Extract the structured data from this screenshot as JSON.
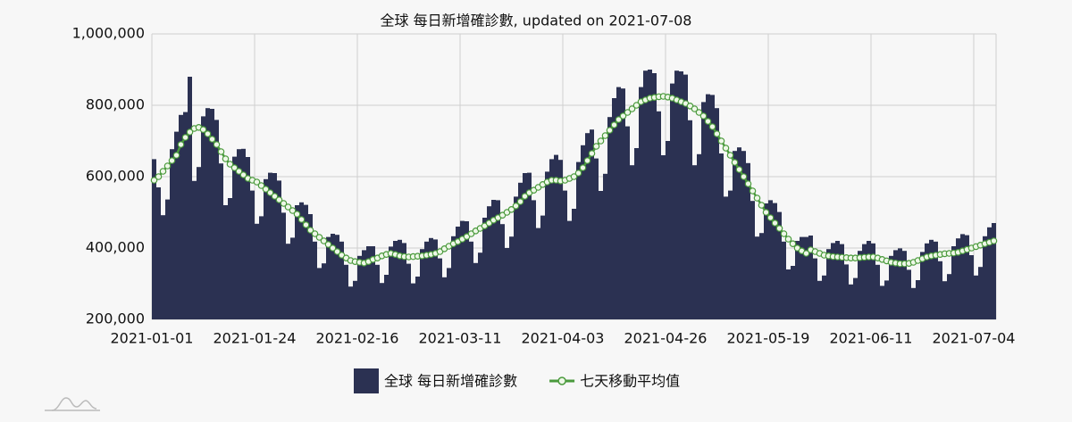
{
  "chart_data": {
    "type": "bar",
    "title": "全球 每日新增確診數, updated on 2021-07-08",
    "categories": [
      "2021-01-01",
      null,
      null,
      null,
      null,
      null,
      null,
      null,
      null,
      null,
      null,
      null,
      null,
      null,
      null,
      null,
      null,
      null,
      null,
      null,
      null,
      null,
      null,
      "2021-01-24",
      null,
      null,
      null,
      null,
      null,
      null,
      null,
      null,
      null,
      null,
      null,
      null,
      null,
      null,
      null,
      null,
      null,
      null,
      null,
      null,
      null,
      null,
      "2021-02-16",
      null,
      null,
      null,
      null,
      null,
      null,
      null,
      null,
      null,
      null,
      null,
      null,
      null,
      null,
      null,
      null,
      null,
      null,
      null,
      null,
      null,
      null,
      "2021-03-11",
      null,
      null,
      null,
      null,
      null,
      null,
      null,
      null,
      null,
      null,
      null,
      null,
      null,
      null,
      null,
      null,
      null,
      null,
      null,
      null,
      null,
      null,
      "2021-04-03",
      null,
      null,
      null,
      null,
      null,
      null,
      null,
      null,
      null,
      null,
      null,
      null,
      null,
      null,
      null,
      null,
      null,
      null,
      null,
      null,
      null,
      null,
      "2021-04-26",
      null,
      null,
      null,
      null,
      null,
      null,
      null,
      null,
      null,
      null,
      null,
      null,
      null,
      null,
      null,
      null,
      null,
      null,
      null,
      null,
      null,
      null,
      "2021-05-19",
      null,
      null,
      null,
      null,
      null,
      null,
      null,
      null,
      null,
      null,
      null,
      null,
      null,
      null,
      null,
      null,
      null,
      null,
      null,
      null,
      null,
      null,
      "2021-06-11",
      null,
      null,
      null,
      null,
      null,
      null,
      null,
      null,
      null,
      null,
      null,
      null,
      null,
      null,
      null,
      null,
      null,
      null,
      null,
      null,
      null,
      null,
      "2021-07-04",
      null,
      null,
      null,
      null
    ],
    "series": [
      {
        "name": "全球 每日新增確診數",
        "type": "bar",
        "color": "#2b3152",
        "values": [
          649000,
          570000,
          492000,
          536000,
          677000,
          726000,
          773000,
          781000,
          880000,
          588000,
          627000,
          769000,
          792000,
          790000,
          759000,
          637000,
          520000,
          540000,
          656000,
          677000,
          678000,
          655000,
          561000,
          468000,
          489000,
          593000,
          611000,
          610000,
          589000,
          499000,
          412000,
          429000,
          520000,
          528000,
          521000,
          495000,
          418000,
          344000,
          357000,
          431000,
          440000,
          437000,
          418000,
          353000,
          292000,
          308000,
          378000,
          394000,
          405000,
          405000,
          353000,
          302000,
          325000,
          404000,
          420000,
          423000,
          414000,
          356000,
          301000,
          320000,
          397000,
          418000,
          428000,
          424000,
          371000,
          318000,
          344000,
          433000,
          460000,
          476000,
          475000,
          418000,
          358000,
          387000,
          485000,
          517000,
          535000,
          534000,
          467000,
          400000,
          432000,
          544000,
          583000,
          610000,
          611000,
          534000,
          456000,
          491000,
          614000,
          649000,
          661000,
          647000,
          561000,
          476000,
          510000,
          641000,
          688000,
          722000,
          732000,
          651000,
          560000,
          608000,
          767000,
          820000,
          851000,
          847000,
          741000,
          632000,
          680000,
          851000,
          897000,
          900000,
          890000,
          783000,
          660000,
          700000,
          861000,
          897000,
          895000,
          886000,
          758000,
          632000,
          663000,
          809000,
          831000,
          829000,
          792000,
          665000,
          544000,
          561000,
          672000,
          682000,
          672000,
          638000,
          532000,
          432000,
          442000,
          525000,
          534000,
          526000,
          501000,
          418000,
          340000,
          350000,
          420000,
          431000,
          431000,
          435000,
          371000,
          308000,
          323000,
          397000,
          414000,
          420000,
          411000,
          354000,
          298000,
          316000,
          392000,
          411000,
          420000,
          413000,
          353000,
          294000,
          309000,
          378000,
          394000,
          399000,
          392000,
          339000,
          288000,
          310000,
          389000,
          413000,
          423000,
          418000,
          363000,
          307000,
          327000,
          405000,
          427000,
          439000,
          436000,
          380000,
          323000,
          347000,
          433000,
          458000,
          470000
        ]
      },
      {
        "name": "七天移動平均值",
        "type": "line",
        "color": "#4a9a3c",
        "values": [
          590000,
          600000,
          615000,
          630000,
          645000,
          660000,
          690000,
          710000,
          725000,
          735000,
          738000,
          732000,
          720000,
          705000,
          690000,
          670000,
          650000,
          635000,
          625000,
          615000,
          605000,
          595000,
          590000,
          585000,
          575000,
          565000,
          555000,
          545000,
          535000,
          525000,
          515000,
          505000,
          495000,
          480000,
          465000,
          450000,
          440000,
          430000,
          420000,
          410000,
          400000,
          390000,
          380000,
          372000,
          365000,
          362000,
          360000,
          358000,
          362000,
          368000,
          372000,
          378000,
          382000,
          385000,
          382000,
          378000,
          376000,
          375000,
          376000,
          377000,
          378000,
          380000,
          382000,
          385000,
          390000,
          398000,
          405000,
          412000,
          418000,
          425000,
          432000,
          440000,
          448000,
          455000,
          462000,
          470000,
          478000,
          485000,
          492000,
          500000,
          508000,
          518000,
          530000,
          545000,
          555000,
          562000,
          570000,
          578000,
          585000,
          590000,
          590000,
          588000,
          590000,
          595000,
          600000,
          610000,
          625000,
          645000,
          665000,
          685000,
          700000,
          715000,
          730000,
          745000,
          760000,
          770000,
          780000,
          790000,
          800000,
          810000,
          815000,
          820000,
          822000,
          824000,
          825000,
          823000,
          820000,
          815000,
          810000,
          805000,
          798000,
          790000,
          780000,
          770000,
          755000,
          740000,
          720000,
          700000,
          680000,
          660000,
          640000,
          620000,
          600000,
          580000,
          560000,
          540000,
          520000,
          500000,
          485000,
          470000,
          455000,
          440000,
          425000,
          412000,
          400000,
          392000,
          385000,
          395000,
          390000,
          385000,
          380000,
          378000,
          376000,
          375000,
          374000,
          373000,
          372000,
          372000,
          373000,
          374000,
          375000,
          375000,
          372000,
          368000,
          364000,
          360000,
          358000,
          356000,
          356000,
          357000,
          360000,
          365000,
          370000,
          375000,
          378000,
          380000,
          382000,
          384000,
          385000,
          386000,
          388000,
          392000,
          396000,
          400000,
          404000,
          408000,
          412000,
          416000,
          420000
        ]
      }
    ],
    "ylim": [
      200000,
      1000000
    ],
    "yticks": [
      {
        "value": 200000,
        "label": "200,000"
      },
      {
        "value": 400000,
        "label": "400,000"
      },
      {
        "value": 600000,
        "label": "600,000"
      },
      {
        "value": 800000,
        "label": "800,000"
      },
      {
        "value": 1000000,
        "label": "1,000,000"
      }
    ],
    "grid": true
  }
}
